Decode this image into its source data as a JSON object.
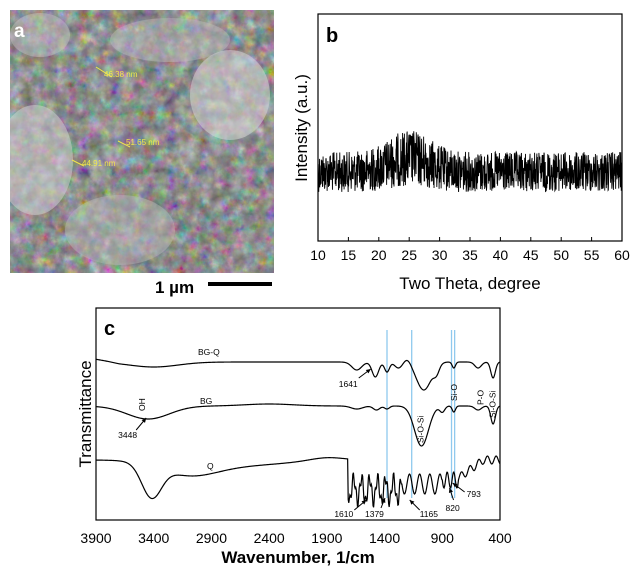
{
  "colors": {
    "line": "#000000",
    "guide": "#8fc9ee",
    "sem_measure": "#f2e84a",
    "panel_label_on_dark": "#ffffff"
  },
  "panel_a": {
    "label": "a",
    "scale_bar_text": "1 µm",
    "measurements": [
      "46.38 nm",
      "51.65 nm",
      "44.91 nm"
    ]
  },
  "chart_data": [
    {
      "panel": "b",
      "type": "line",
      "xlabel": "Two Theta, degree",
      "ylabel": "Intensity (a.u.)",
      "xlim": [
        10,
        60
      ],
      "x_ticks": [
        10,
        15,
        20,
        25,
        30,
        35,
        40,
        45,
        50,
        55,
        60
      ],
      "y_ticks": [],
      "grid": false,
      "description_values": {
        "x_start": 10,
        "x_end": 60,
        "amorphous_hump_center": 25,
        "amorphous_hump_range": [
          20,
          32
        ]
      }
    },
    {
      "panel": "c",
      "type": "line",
      "xlabel": "Wavenumber, 1/cm",
      "ylabel": "Transmittance",
      "xlim": [
        3900,
        400
      ],
      "x_ticks": [
        3900,
        3400,
        2900,
        2400,
        1900,
        1400,
        900,
        400
      ],
      "grid": false,
      "series": [
        {
          "name": "BG-Q"
        },
        {
          "name": "BG"
        },
        {
          "name": "Q"
        }
      ],
      "guide_lines": [
        1379,
        1165,
        820,
        793
      ],
      "annotations": [
        {
          "text": "1641",
          "x": 1641
        },
        {
          "text": "3448",
          "x": 3448
        },
        {
          "text": "OH",
          "x": 3448
        },
        {
          "text": "1610",
          "x": 1610
        },
        {
          "text": "1379",
          "x": 1379
        },
        {
          "text": "1165",
          "x": 1165
        },
        {
          "text": "820",
          "x": 820
        },
        {
          "text": "793",
          "x": 793
        },
        {
          "text": "Si-O-Si",
          "x": 1090
        },
        {
          "text": "Si-O",
          "x": 800
        },
        {
          "text": "P-O",
          "x": 570
        },
        {
          "text": "Si-O-Si",
          "x": 465
        }
      ]
    }
  ]
}
